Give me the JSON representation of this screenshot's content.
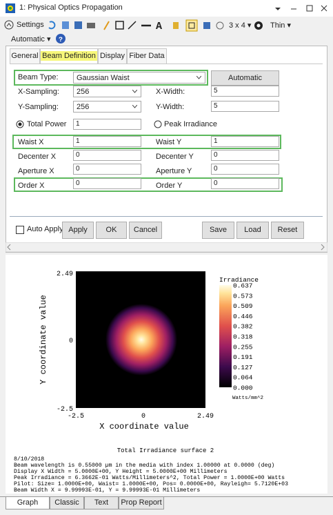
{
  "window": {
    "title": "1: Physical Optics Propagation"
  },
  "toolbar": {
    "settings": "Settings",
    "layout": "3 x 4 ▾",
    "thin": "Thin ▾",
    "automatic": "Automatic ▾"
  },
  "tabs": [
    "General",
    "Beam Definition",
    "Display",
    "Fiber Data"
  ],
  "form": {
    "beam_type": {
      "label": "Beam Type:",
      "value": "Gaussian Waist"
    },
    "automatic_button": "Automatic",
    "x_sampling": {
      "label": "X-Sampling:",
      "value": "256"
    },
    "x_width": {
      "label": "X-Width:",
      "value": "5"
    },
    "y_sampling": {
      "label": "Y-Sampling:",
      "value": "256"
    },
    "y_width": {
      "label": "Y-Width:",
      "value": "5"
    },
    "total_power": {
      "label": "Total Power",
      "value": "1"
    },
    "peak_irradiance": {
      "label": "Peak Irradiance"
    },
    "waist_x": {
      "label": "Waist X",
      "value": "1"
    },
    "waist_y": {
      "label": "Waist Y",
      "value": "1"
    },
    "decenter_x": {
      "label": "Decenter X",
      "value": "0"
    },
    "decenter_y": {
      "label": "Decenter Y",
      "value": "0"
    },
    "aperture_x": {
      "label": "Aperture X",
      "value": "0"
    },
    "aperture_y": {
      "label": "Aperture Y",
      "value": "0"
    },
    "order_x": {
      "label": "Order X",
      "value": "0"
    },
    "order_y": {
      "label": "Order Y",
      "value": "0"
    },
    "auto_apply": "Auto Apply",
    "buttons": [
      "Apply",
      "OK",
      "Cancel",
      "Save",
      "Load",
      "Reset"
    ]
  },
  "plot": {
    "y_label": "Y coordinate value",
    "x_label": "X coordinate value",
    "y_ticks": [
      "2.49",
      "0",
      "-2.5"
    ],
    "x_ticks": [
      "-2.5",
      "0",
      "2.49"
    ],
    "colorbar": {
      "title": "Irradiance",
      "ticks": [
        "0.637",
        "0.573",
        "0.509",
        "0.446",
        "0.382",
        "0.318",
        "0.255",
        "0.191",
        "0.127",
        "0.064",
        "0.000"
      ],
      "units": "Watts/mm^2"
    },
    "caption": "Total Irradiance surface 2",
    "info": [
      "8/10/2018",
      "Beam wavelength is 0.55000 µm in the media with index 1.00000 at 0.0000 (deg)",
      "Display X Width = 5.0000E+00, Y Height = 5.0000E+00 Millimeters",
      "Peak Irradiance = 6.3662E-01 Watts/Millimeters^2, Total Power = 1.0000E+00 Watts",
      "Pilot: Size= 1.0000E+00, Waist= 1.0000E+00, Pos= 0.0000E+00, Rayleigh= 5.7120E+03",
      "Beam Width X = 9.99993E-01, Y = 9.99993E-01 Millimeters"
    ]
  },
  "bottom_tabs": [
    "Graph",
    "Classic",
    "Text",
    "Prop Report"
  ]
}
